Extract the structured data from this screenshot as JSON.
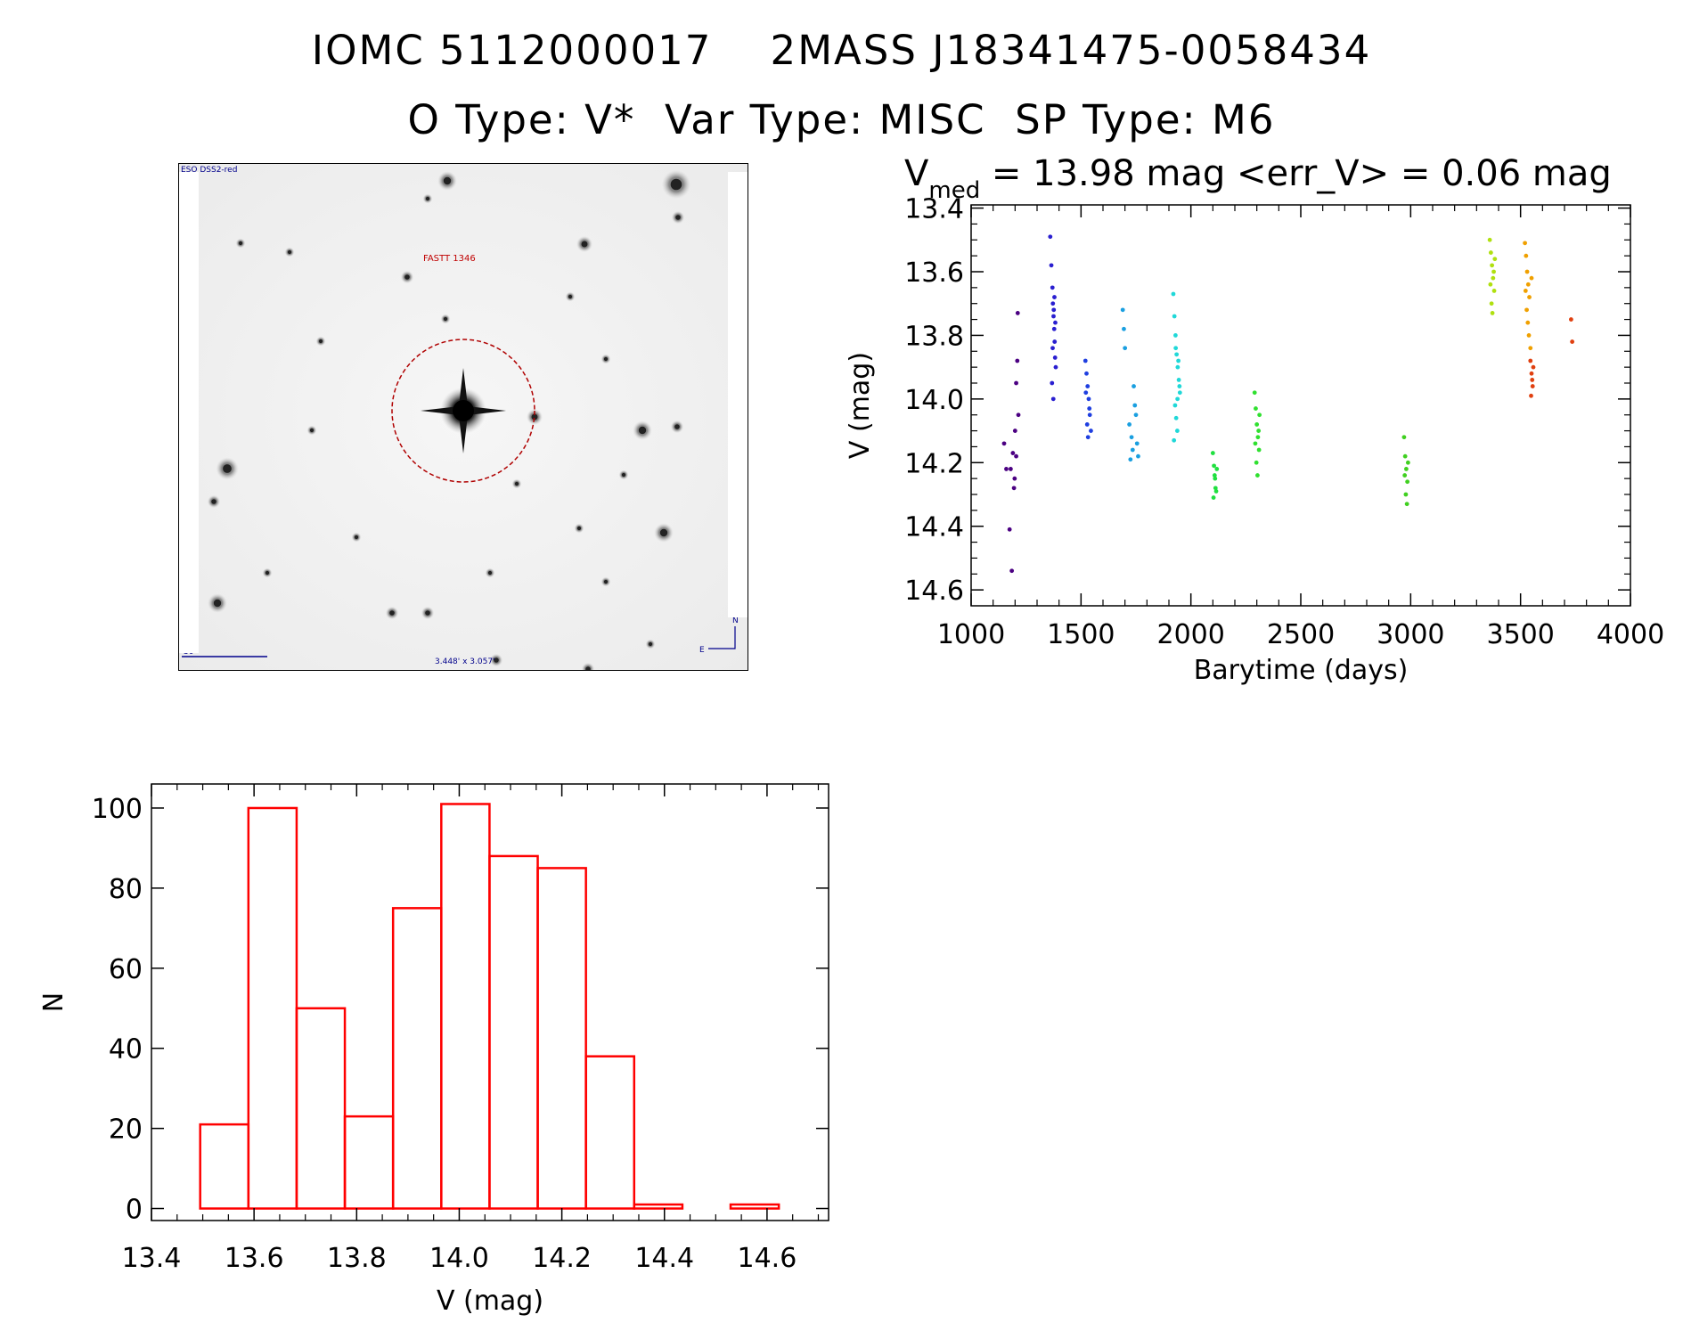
{
  "header": {
    "title_line1": "IOMC 5112000017    2MASS J18341475-0058434",
    "title_line2": "O Type: V*  Var Type: MISC  SP Type: M6"
  },
  "sky_image": {
    "survey_label": "ESO DSS2-red",
    "target_label": "FASTT 1346",
    "scale_label": "30\"",
    "size_label": "3.448' x 3.057'",
    "north_label": "N",
    "east_label": "E"
  },
  "chart_data": [
    {
      "type": "scatter",
      "title_prefix": "V",
      "title_subscript": "med",
      "title_rest": " = 13.98 mag <err_V> = 0.06 mag",
      "xlabel": "Barytime (days)",
      "ylabel": "V (mag)",
      "xlim": [
        1000,
        4000
      ],
      "ylim": [
        14.65,
        13.39
      ],
      "xticks": [
        1000,
        1500,
        2000,
        2500,
        3000,
        3500,
        4000
      ],
      "yticks": [
        13.4,
        13.6,
        13.8,
        14.0,
        14.2,
        14.4,
        14.6
      ],
      "xtick_labels": [
        "1000",
        "1500",
        "2000",
        "2500",
        "3000",
        "3500",
        "4000"
      ],
      "ytick_labels": [
        "13.4",
        "13.6",
        "13.8",
        "14.0",
        "14.2",
        "14.4",
        "14.6"
      ],
      "series": [
        {
          "name": "group1",
          "color": "#4b0082",
          "x": [
            1150,
            1160,
            1175,
            1185,
            1195,
            1200,
            1205,
            1210,
            1212,
            1215,
            1205,
            1198,
            1190,
            1180
          ],
          "y": [
            14.14,
            14.22,
            14.41,
            14.54,
            14.28,
            14.1,
            13.95,
            13.88,
            13.73,
            14.05,
            14.18,
            14.25,
            14.17,
            14.22
          ]
        },
        {
          "name": "group2",
          "color": "#2a1fd0",
          "x": [
            1360,
            1365,
            1370,
            1372,
            1375,
            1378,
            1380,
            1382,
            1385,
            1368,
            1374,
            1379,
            1383,
            1371,
            1376
          ],
          "y": [
            13.49,
            13.58,
            13.65,
            13.7,
            13.74,
            13.78,
            13.82,
            13.87,
            13.9,
            13.95,
            14.0,
            13.68,
            13.76,
            13.84,
            13.72
          ]
        },
        {
          "name": "group3",
          "color": "#1f3fe0",
          "x": [
            1520,
            1525,
            1530,
            1535,
            1540,
            1528,
            1532,
            1538,
            1522,
            1545
          ],
          "y": [
            13.88,
            13.92,
            13.96,
            14.0,
            14.05,
            14.08,
            14.12,
            14.03,
            13.98,
            14.1
          ]
        },
        {
          "name": "group4",
          "color": "#1a9fe0",
          "x": [
            1690,
            1695,
            1700,
            1720,
            1730,
            1740,
            1750,
            1760,
            1735,
            1745,
            1755,
            1725
          ],
          "y": [
            13.72,
            13.78,
            13.84,
            14.08,
            14.12,
            13.96,
            14.05,
            14.18,
            14.16,
            14.02,
            14.14,
            14.19
          ]
        },
        {
          "name": "group5",
          "color": "#20d8d8",
          "x": [
            1920,
            1925,
            1930,
            1935,
            1940,
            1945,
            1950,
            1928,
            1933,
            1938,
            1943,
            1948,
            1923,
            1931,
            1939
          ],
          "y": [
            13.67,
            13.74,
            13.8,
            13.86,
            13.9,
            13.94,
            13.98,
            14.02,
            14.06,
            14.1,
            13.88,
            13.96,
            14.13,
            13.84,
            14.0
          ]
        },
        {
          "name": "group6",
          "color": "#20e040",
          "x": [
            2100,
            2105,
            2110,
            2115,
            2103,
            2108,
            2112,
            2118
          ],
          "y": [
            14.17,
            14.21,
            14.25,
            14.29,
            14.31,
            14.24,
            14.28,
            14.22
          ]
        },
        {
          "name": "group7",
          "color": "#30e030",
          "x": [
            2290,
            2295,
            2300,
            2305,
            2310,
            2298,
            2303,
            2308,
            2293,
            2312
          ],
          "y": [
            13.98,
            14.03,
            14.08,
            14.12,
            14.16,
            14.2,
            14.24,
            14.1,
            14.14,
            14.05
          ]
        },
        {
          "name": "group8",
          "color": "#40d020",
          "x": [
            2970,
            2975,
            2980,
            2985,
            2978,
            2983,
            2973,
            2988
          ],
          "y": [
            14.12,
            14.18,
            14.22,
            14.26,
            14.3,
            14.33,
            14.24,
            14.2
          ]
        },
        {
          "name": "group9",
          "color": "#b0e010",
          "x": [
            3360,
            3365,
            3370,
            3375,
            3380,
            3368,
            3372,
            3378,
            3363,
            3383
          ],
          "y": [
            13.5,
            13.54,
            13.58,
            13.62,
            13.66,
            13.7,
            13.73,
            13.6,
            13.64,
            13.56
          ]
        },
        {
          "name": "group10",
          "color": "#f0a000",
          "x": [
            3520,
            3525,
            3530,
            3535,
            3540,
            3528,
            3533,
            3538,
            3545,
            3550,
            3523
          ],
          "y": [
            13.51,
            13.55,
            13.6,
            13.64,
            13.68,
            13.72,
            13.76,
            13.8,
            13.84,
            13.62,
            13.66
          ]
        },
        {
          "name": "group11",
          "color": "#e04010",
          "x": [
            3545,
            3550,
            3555,
            3548,
            3553,
            3558,
            3730,
            3735
          ],
          "y": [
            13.88,
            13.92,
            13.96,
            13.99,
            13.94,
            13.9,
            13.75,
            13.82
          ]
        }
      ]
    },
    {
      "type": "bar",
      "style": "histogram",
      "xlabel": "V (mag)",
      "ylabel": "N",
      "xlim": [
        13.4,
        14.72
      ],
      "ylim": [
        -3,
        106
      ],
      "xticks": [
        13.4,
        13.6,
        13.8,
        14.0,
        14.2,
        14.4,
        14.6
      ],
      "xtick_labels": [
        "13.4",
        "13.6",
        "13.8",
        "14.0",
        "14.2",
        "14.4",
        "14.6"
      ],
      "yticks": [
        0,
        20,
        40,
        60,
        80,
        100
      ],
      "ytick_labels": [
        "0",
        "20",
        "40",
        "60",
        "80",
        "100"
      ],
      "bin_edges": [
        13.495,
        13.589,
        13.683,
        13.777,
        13.871,
        13.965,
        14.059,
        14.153,
        14.247,
        14.341,
        14.435,
        14.529,
        14.623
      ],
      "values": [
        21,
        100,
        50,
        23,
        75,
        101,
        88,
        85,
        38,
        1,
        0,
        1
      ],
      "color": "#ff0000"
    }
  ]
}
